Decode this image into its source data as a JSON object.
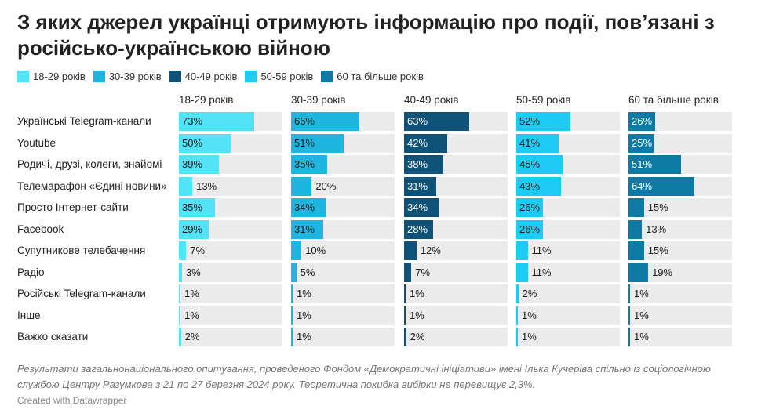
{
  "title": "З яких джерел українці отримують інформацію про події, пов’язані з російсько-українською війною",
  "legend": [
    {
      "label": "18-29 років",
      "color": "#52e3f7"
    },
    {
      "label": "30-39 років",
      "color": "#1eb6df"
    },
    {
      "label": "40-49 років",
      "color": "#0f5277"
    },
    {
      "label": "50-59 років",
      "color": "#1ecbf5"
    },
    {
      "label": "60 та більше років",
      "color": "#0d7aa6"
    }
  ],
  "chart_data": {
    "type": "bar",
    "categories": [
      "Українські Telegram-канали",
      "Youtube",
      "Родичі, друзі, колеги, знайомі",
      "Телемарафон «Єдині новини»",
      "Просто Інтернет-сайти",
      "Facebook",
      "Супутникове телебачення",
      "Радіо",
      "Російські Telegram-канали",
      "Інше",
      "Важко сказати"
    ],
    "series": [
      {
        "name": "18-29 років",
        "values": [
          73,
          50,
          39,
          13,
          35,
          29,
          7,
          3,
          1,
          1,
          2
        ]
      },
      {
        "name": "30-39 років",
        "values": [
          66,
          51,
          35,
          20,
          34,
          31,
          10,
          5,
          1,
          1,
          1
        ]
      },
      {
        "name": "40-49 років",
        "values": [
          63,
          42,
          38,
          31,
          34,
          28,
          12,
          7,
          1,
          1,
          2
        ]
      },
      {
        "name": "50-59 років",
        "values": [
          52,
          41,
          45,
          43,
          26,
          26,
          11,
          11,
          2,
          1,
          1
        ]
      },
      {
        "name": "60 та більше років",
        "values": [
          26,
          25,
          51,
          64,
          15,
          13,
          15,
          19,
          1,
          1,
          1
        ]
      }
    ],
    "value_suffix": "%",
    "xlim": [
      0,
      100
    ],
    "grid": false
  },
  "footnote": "Результати загальнонаціонального опитування, проведеного Фондом «Демократичні ініціативи» імені Ілька Кучеріва спільно із соціологічною службою Центру Разумкова з 21 по 27 березня 2024 року. Теоретична похибка вибірки не перевищує 2,3%.",
  "credit": "Created with Datawrapper"
}
